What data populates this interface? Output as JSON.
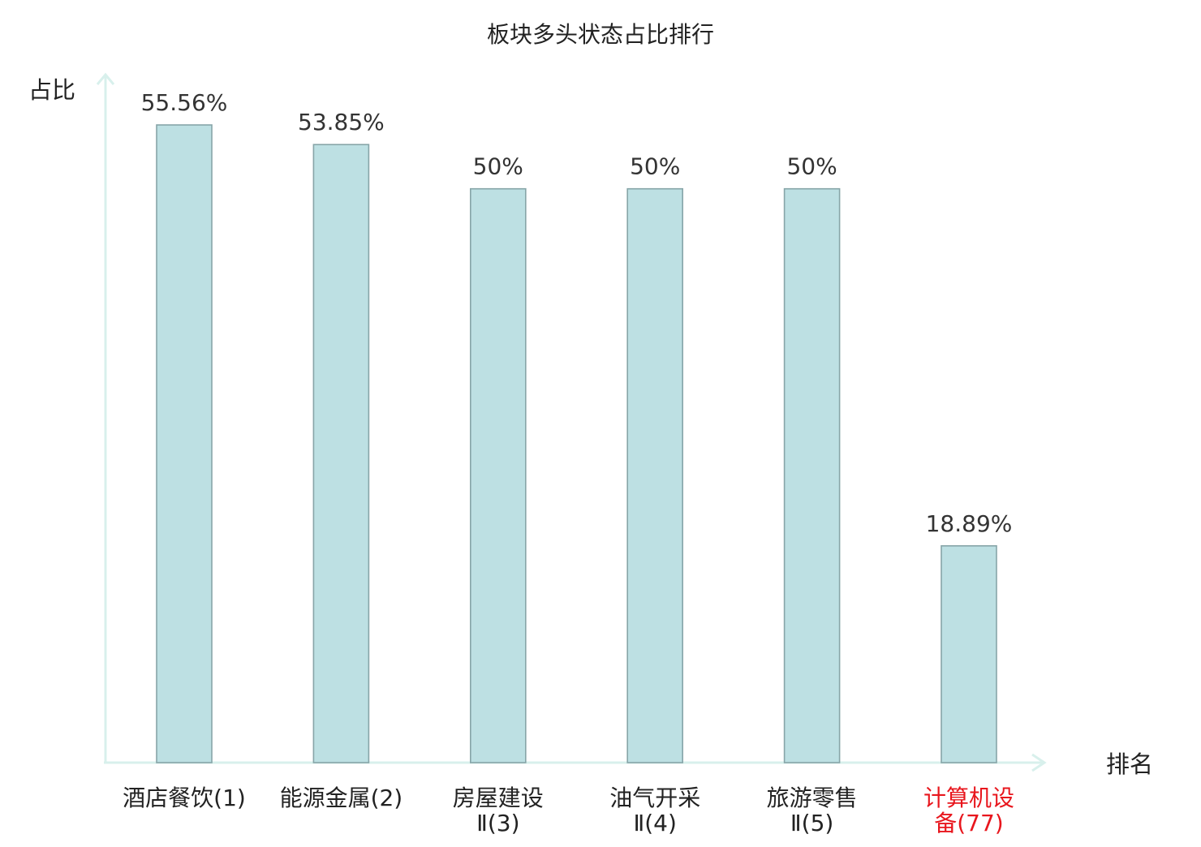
{
  "chart_data": {
    "type": "bar",
    "title": "板块多头状态占比排行",
    "ylabel": "占比",
    "xlabel": "排名",
    "categories": [
      [
        "酒店餐饮(1)"
      ],
      [
        "能源金属(2)"
      ],
      [
        "房屋建设",
        "Ⅱ(3)"
      ],
      [
        "油气开采",
        "Ⅱ(4)"
      ],
      [
        "旅游零售",
        "Ⅱ(5)"
      ],
      [
        "计算机设",
        "备(77)"
      ]
    ],
    "values": [
      55.56,
      53.85,
      50,
      50,
      50,
      18.89
    ],
    "value_labels": [
      "55.56%",
      "53.85%",
      "50%",
      "50%",
      "50%",
      "18.89%"
    ],
    "highlight_index": 5,
    "ylim": [
      0,
      60
    ],
    "grid": false,
    "colors": {
      "bar_fill": "#bde0e3",
      "bar_stroke": "#87a5a8",
      "axis": "#d8f0ec",
      "text": "#222222",
      "value_text": "#333333",
      "highlight": "#e8161d"
    }
  }
}
